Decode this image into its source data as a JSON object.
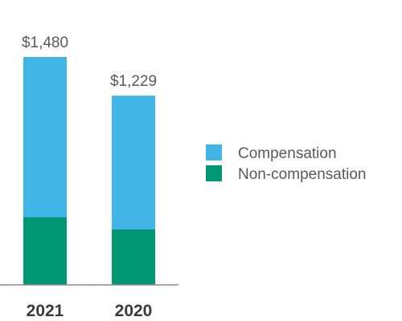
{
  "chart_data": {
    "type": "bar",
    "stacked": true,
    "categories": [
      "2021",
      "2020"
    ],
    "series": [
      {
        "name": "Non-compensation",
        "values": [
          440,
          360
        ],
        "color": "#009874"
      },
      {
        "name": "Compensation",
        "values": [
          1040,
          869
        ],
        "color": "#41b6e6"
      }
    ],
    "totals": [
      "$1,480",
      "$1,229"
    ],
    "legend": {
      "placement": "right",
      "entries": [
        "Compensation",
        "Non-compensation"
      ]
    },
    "ylim": [
      0,
      1480
    ],
    "grid": false
  }
}
